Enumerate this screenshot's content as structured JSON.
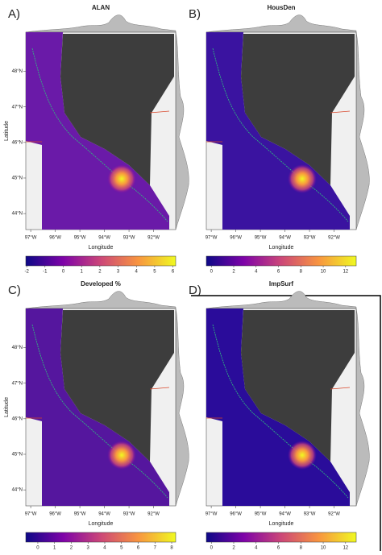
{
  "panels": [
    {
      "label": "A)",
      "title": "ALAN",
      "xlabel": "Longitude",
      "ylabel": "Latitude",
      "xlim": [
        -97.2,
        -91.1
      ],
      "ylim": [
        43.55,
        49.1
      ],
      "xticks": [
        {
          "value": -97,
          "label": "97°W"
        },
        {
          "value": -96,
          "label": "96°W"
        },
        {
          "value": -95,
          "label": "95°W"
        },
        {
          "value": -94,
          "label": "94°W"
        },
        {
          "value": -93,
          "label": "93°W"
        },
        {
          "value": -92,
          "label": "92°W"
        }
      ],
      "yticks": [
        {
          "value": 48,
          "label": "48°N"
        },
        {
          "value": 47,
          "label": "47°N"
        },
        {
          "value": 46,
          "label": "46°N"
        },
        {
          "value": 45,
          "label": "45°N"
        },
        {
          "value": 44,
          "label": "44°N"
        }
      ],
      "clim": [
        -2.05,
        6.15
      ],
      "cticks": [
        -2,
        -1,
        0,
        1,
        2,
        3,
        4,
        5,
        6
      ],
      "color": "#6a1aa8"
    },
    {
      "label": "B)",
      "title": "HousDen",
      "xlabel": "Longitude",
      "xlim": [
        -97.2,
        -91.1
      ],
      "ylim": [
        43.55,
        49.1
      ],
      "xticks": [
        {
          "value": -97,
          "label": "97°W"
        },
        {
          "value": -96,
          "label": "96°W"
        },
        {
          "value": -95,
          "label": "95°W"
        },
        {
          "value": -94,
          "label": "94°W"
        },
        {
          "value": -93,
          "label": "93°W"
        },
        {
          "value": -92,
          "label": "92°W"
        }
      ],
      "clim": [
        -0.45,
        12.95
      ],
      "cticks": [
        0,
        2,
        4,
        6,
        8,
        10,
        12
      ],
      "color": "#3a13a0"
    },
    {
      "label": "C)",
      "title": "Developed %",
      "xlabel": "Longitude",
      "ylabel": "Latitude",
      "xlim": [
        -97.2,
        -91.1
      ],
      "ylim": [
        43.55,
        49.1
      ],
      "xticks": [
        {
          "value": -97,
          "label": "97°W"
        },
        {
          "value": -96,
          "label": "96°W"
        },
        {
          "value": -95,
          "label": "95°W"
        },
        {
          "value": -94,
          "label": "94°W"
        },
        {
          "value": -93,
          "label": "93°W"
        },
        {
          "value": -92,
          "label": "92°W"
        }
      ],
      "yticks": [
        {
          "value": 48,
          "label": "48°N"
        },
        {
          "value": 47,
          "label": "47°N"
        },
        {
          "value": 46,
          "label": "46°N"
        },
        {
          "value": 45,
          "label": "45°N"
        },
        {
          "value": 44,
          "label": "44°N"
        }
      ],
      "clim": [
        -0.72,
        8.24
      ],
      "cticks": [
        0,
        1,
        2,
        3,
        4,
        5,
        6,
        7,
        8
      ],
      "color": "#55169e"
    },
    {
      "label": "D)",
      "title": "ImpSurf",
      "xlabel": "Longitude",
      "xlim": [
        -97.2,
        -91.1
      ],
      "ylim": [
        43.55,
        49.1
      ],
      "xticks": [
        {
          "value": -97,
          "label": "97°W"
        },
        {
          "value": -96,
          "label": "96°W"
        },
        {
          "value": -95,
          "label": "95°W"
        },
        {
          "value": -94,
          "label": "94°W"
        },
        {
          "value": -93,
          "label": "93°W"
        },
        {
          "value": -92,
          "label": "92°W"
        }
      ],
      "clim": [
        -0.45,
        12.95
      ],
      "cticks": [
        0,
        2,
        4,
        6,
        8,
        10,
        12
      ],
      "color": "#2a0c9a"
    }
  ]
}
